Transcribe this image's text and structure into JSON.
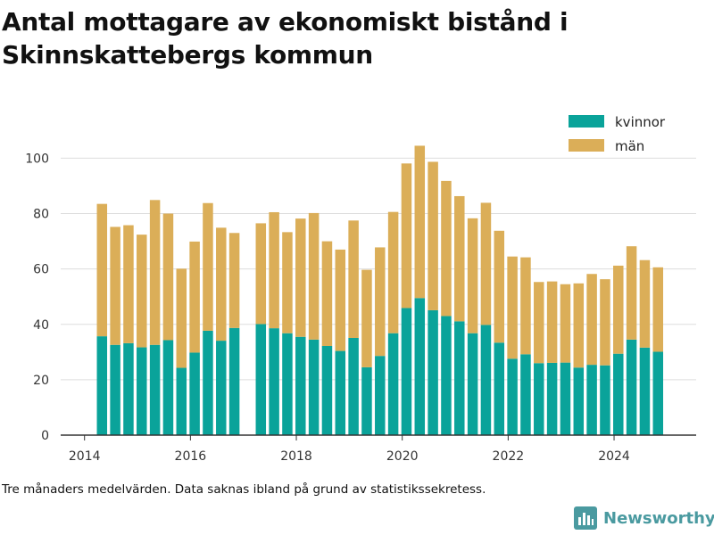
{
  "title": "Antal mottagare av ekonomiskt bistånd i Skinnskattebergs kommun",
  "footnote": "Tre månaders medelvärden. Data saknas ibland på grund av statistikssekretess.",
  "brand": {
    "name": "Newsworthy",
    "icon": "bar-chart-logo-icon"
  },
  "colors": {
    "kvinnor": "#0aa39a",
    "man": "#dbae58",
    "grid": "#dddddd",
    "axis": "#333333",
    "brand": "#4a9aa0"
  },
  "chart_data": {
    "type": "bar",
    "stacked": true,
    "title": "Antal mottagare av ekonomiskt bistånd i Skinnskattebergs kommun",
    "xlabel": "",
    "ylabel": "",
    "xlim": [
      2013.55,
      2025.55
    ],
    "ylim": [
      0,
      104
    ],
    "x_ticks": [
      2014,
      2016,
      2018,
      2020,
      2022,
      2024
    ],
    "y_ticks": [
      0,
      20,
      40,
      60,
      80,
      100
    ],
    "grid": "horizontal",
    "legend_position": "top-right",
    "x": [
      2014.33,
      2014.58,
      2014.83,
      2015.08,
      2015.33,
      2015.58,
      2015.83,
      2016.08,
      2016.33,
      2016.58,
      2016.83,
      2017.33,
      2017.58,
      2017.83,
      2018.08,
      2018.33,
      2018.58,
      2018.83,
      2019.08,
      2019.33,
      2019.58,
      2019.83,
      2020.08,
      2020.33,
      2020.58,
      2020.83,
      2021.08,
      2021.33,
      2021.58,
      2021.83,
      2022.08,
      2022.33,
      2022.58,
      2022.83,
      2023.08,
      2023.33,
      2023.58,
      2023.83,
      2024.08,
      2024.33,
      2024.58,
      2024.83
    ],
    "series": [
      {
        "name": "kvinnor",
        "values": [
          35.7,
          32.6,
          33.2,
          31.7,
          32.6,
          34.3,
          24.3,
          29.8,
          37.7,
          34.1,
          38.7,
          40.1,
          38.6,
          36.8,
          35.5,
          34.5,
          32.2,
          30.4,
          35.1,
          24.5,
          28.6,
          36.8,
          45.9,
          49.5,
          45.1,
          43.0,
          41.1,
          36.8,
          39.8,
          33.4,
          27.6,
          29.2,
          26.0,
          26.1,
          26.2,
          24.4,
          25.4,
          25.2,
          29.4,
          34.5,
          31.6,
          30.1
        ]
      },
      {
        "name": "män",
        "values": [
          47.8,
          42.6,
          42.6,
          40.7,
          52.3,
          45.7,
          35.8,
          40.1,
          46.1,
          40.8,
          34.3,
          36.4,
          41.9,
          36.5,
          42.7,
          45.7,
          37.8,
          36.6,
          42.4,
          35.2,
          39.2,
          43.8,
          52.2,
          55.0,
          53.6,
          48.8,
          45.2,
          41.5,
          44.1,
          40.4,
          36.9,
          35.0,
          29.3,
          29.4,
          28.3,
          30.4,
          32.8,
          31.1,
          31.8,
          33.7,
          31.6,
          30.5
        ]
      }
    ]
  }
}
